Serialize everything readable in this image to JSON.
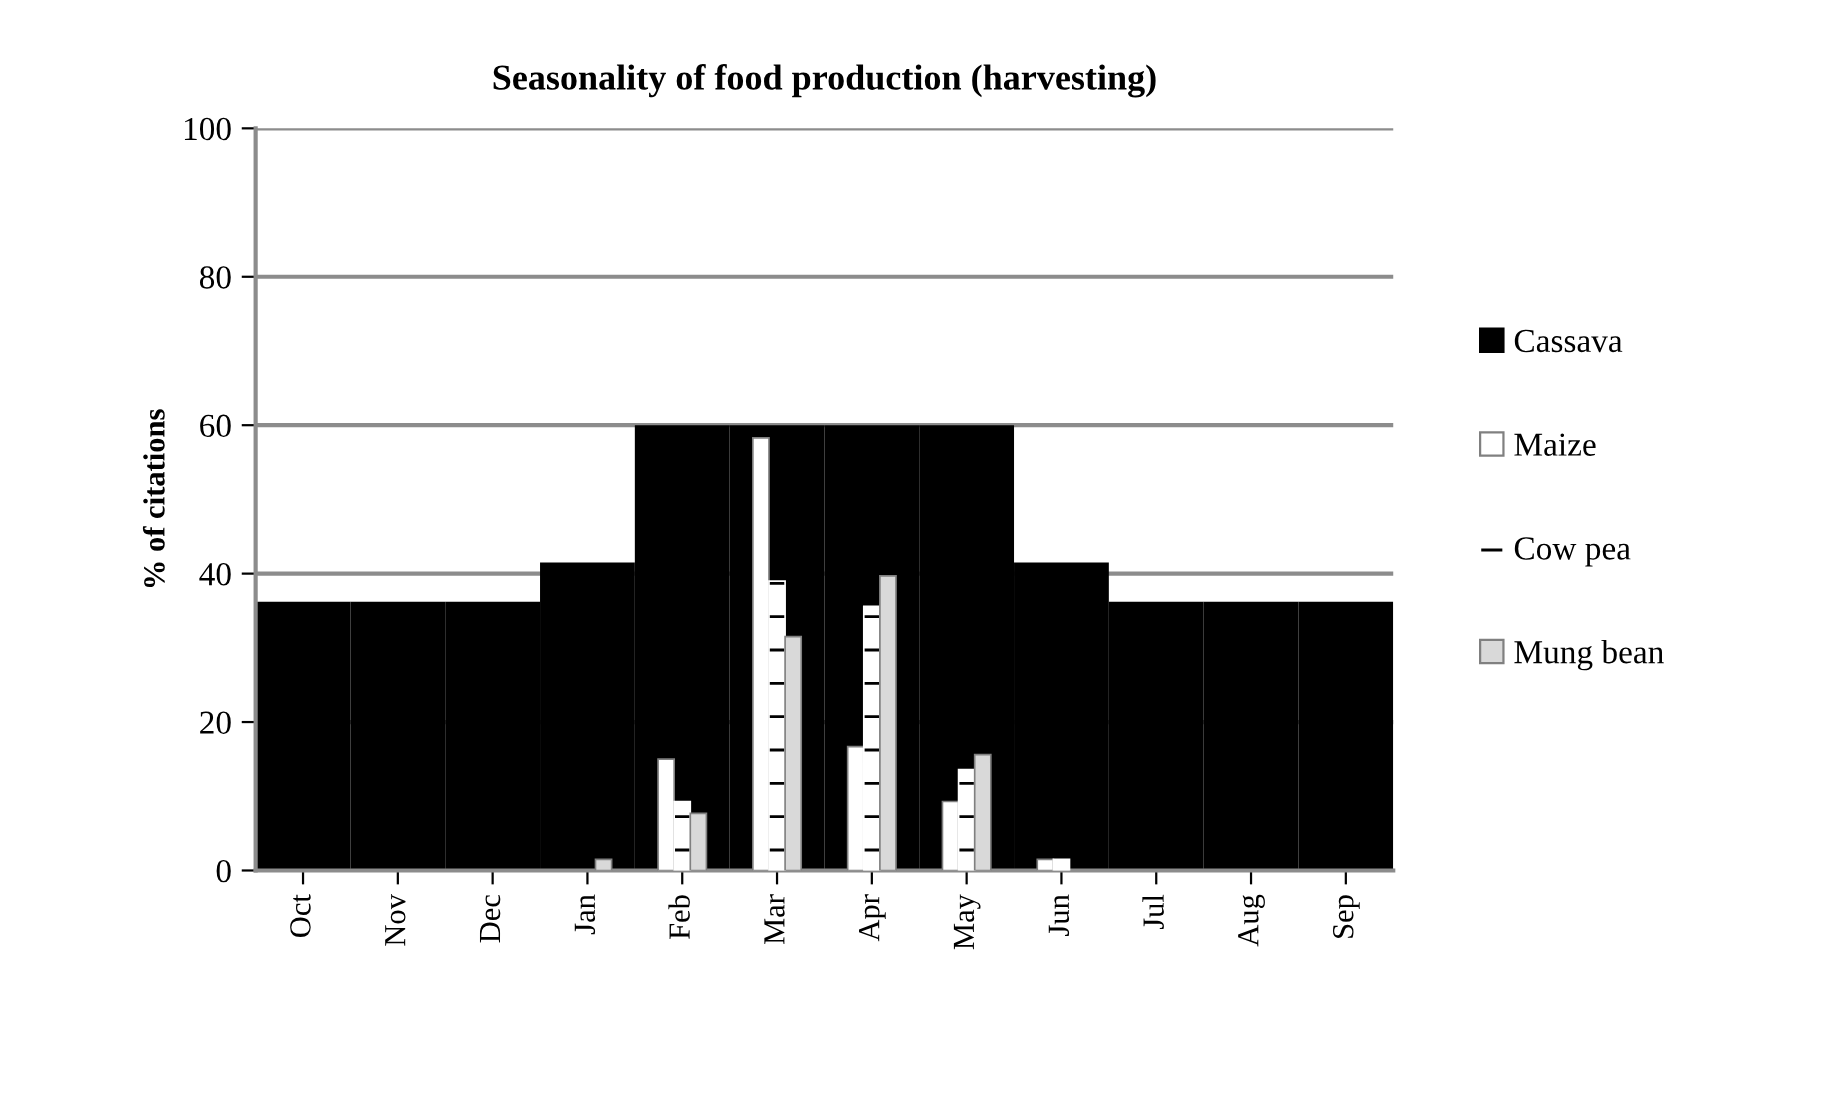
{
  "chart_data": {
    "type": "bar",
    "title": "Seasonality of food production (harvesting)",
    "ylabel": "% of citations",
    "categories": [
      "Oct",
      "Nov",
      "Dec",
      "Jan",
      "Feb",
      "Mar",
      "Apr",
      "May",
      "Jun",
      "Jul",
      "Aug",
      "Sep"
    ],
    "series": [
      {
        "name": "Cassava",
        "color": "#000000",
        "values": [
          36.2,
          36.2,
          36.2,
          41.5,
          60,
          60,
          60,
          60,
          41.5,
          36.2,
          36.2,
          36.2
        ]
      },
      {
        "name": "Maize",
        "color": "#ffffff",
        "values": [
          null,
          null,
          null,
          null,
          15,
          58.3,
          16.7,
          9.3,
          1.5,
          null,
          null,
          null
        ]
      },
      {
        "name": "Cow pea",
        "color": "#ffffff",
        "values": [
          null,
          null,
          null,
          null,
          9.3,
          39,
          35.6,
          13.6,
          1.5,
          null,
          null,
          null
        ]
      },
      {
        "name": "Mung bean",
        "color": "#d9d9d9",
        "values": [
          null,
          null,
          null,
          1.5,
          7.7,
          31.5,
          39.7,
          15.6,
          null,
          null,
          null,
          null
        ]
      }
    ],
    "ylim": [
      0,
      100
    ],
    "yticks": [
      0,
      20,
      40,
      60,
      80,
      100
    ],
    "grid": "y",
    "legend": "right"
  }
}
